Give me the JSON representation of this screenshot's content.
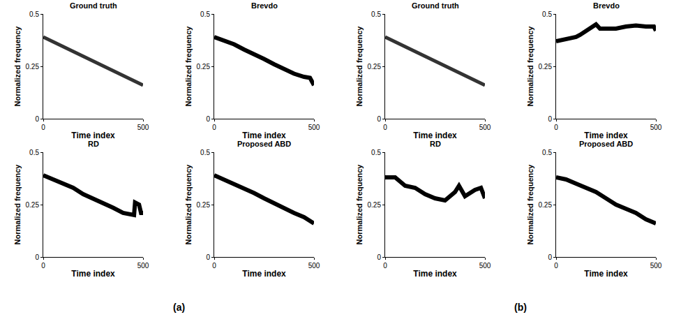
{
  "chart_data": [
    {
      "type": "line",
      "panel": "(a)",
      "title": "Ground truth",
      "x_label": "Time index",
      "y_label": "Normalized frequency",
      "x": [
        0,
        500
      ],
      "values": [
        0.39,
        0.16
      ],
      "color": "#333333",
      "xlim": [
        0,
        500
      ],
      "ylim": [
        0,
        0.5
      ],
      "xticks": [
        0,
        500
      ],
      "yticks": [
        0,
        0.25,
        0.5
      ]
    },
    {
      "type": "line",
      "panel": "(a)",
      "title": "Brevdo",
      "x_label": "Time index",
      "y_label": "Normalized frequency",
      "x": [
        0,
        50,
        100,
        150,
        200,
        250,
        300,
        350,
        400,
        450,
        480,
        500
      ],
      "values": [
        0.39,
        0.375,
        0.355,
        0.33,
        0.31,
        0.285,
        0.26,
        0.235,
        0.215,
        0.2,
        0.195,
        0.16
      ],
      "color": "#000000",
      "xlim": [
        0,
        500
      ],
      "ylim": [
        0,
        0.5
      ],
      "xticks": [
        0,
        500
      ],
      "yticks": [
        0,
        0.25,
        0.5
      ]
    },
    {
      "type": "line",
      "panel": "(a)",
      "title": "RD",
      "x_label": "Time index",
      "y_label": "Normalized frequency",
      "x": [
        0,
        50,
        100,
        150,
        200,
        250,
        300,
        350,
        400,
        440,
        455,
        460,
        480,
        490,
        500
      ],
      "values": [
        0.39,
        0.37,
        0.35,
        0.33,
        0.3,
        0.28,
        0.26,
        0.235,
        0.21,
        0.2,
        0.2,
        0.26,
        0.25,
        0.21,
        0.21
      ],
      "color": "#000000",
      "xlim": [
        0,
        500
      ],
      "ylim": [
        0,
        0.5
      ],
      "xticks": [
        0,
        500
      ],
      "yticks": [
        0,
        0.25,
        0.5
      ]
    },
    {
      "type": "line",
      "panel": "(a)",
      "title": "Proposed ABD",
      "x_label": "Time index",
      "y_label": "Normalized frequency",
      "x": [
        0,
        50,
        100,
        150,
        200,
        250,
        300,
        350,
        400,
        450,
        500
      ],
      "values": [
        0.39,
        0.37,
        0.35,
        0.33,
        0.305,
        0.28,
        0.255,
        0.235,
        0.21,
        0.19,
        0.16
      ],
      "color": "#000000",
      "xlim": [
        0,
        500
      ],
      "ylim": [
        0,
        0.5
      ],
      "xticks": [
        0,
        500
      ],
      "yticks": [
        0,
        0.25,
        0.5
      ]
    },
    {
      "type": "line",
      "panel": "(b)",
      "title": "Ground truth",
      "x_label": "Time index",
      "y_label": "Normalized frequency",
      "x": [
        0,
        500
      ],
      "values": [
        0.39,
        0.16
      ],
      "color": "#333333",
      "xlim": [
        0,
        500
      ],
      "ylim": [
        0,
        0.5
      ],
      "xticks": [
        0,
        500
      ],
      "yticks": [
        0,
        0.25,
        0.5
      ]
    },
    {
      "type": "line",
      "panel": "(b)",
      "title": "Brevdo",
      "x_label": "Time index",
      "y_label": "Normalized frequency",
      "x": [
        0,
        50,
        100,
        120,
        150,
        200,
        220,
        300,
        350,
        400,
        450,
        490,
        500
      ],
      "values": [
        0.37,
        0.38,
        0.39,
        0.4,
        0.42,
        0.45,
        0.43,
        0.43,
        0.44,
        0.445,
        0.44,
        0.44,
        0.42
      ],
      "color": "#000000",
      "xlim": [
        0,
        500
      ],
      "ylim": [
        0,
        0.5
      ],
      "xticks": [
        0,
        500
      ],
      "yticks": [
        0,
        0.25,
        0.5
      ]
    },
    {
      "type": "line",
      "panel": "(b)",
      "title": "RD",
      "x_label": "Time index",
      "y_label": "Normalized frequency",
      "x": [
        0,
        50,
        100,
        150,
        200,
        250,
        300,
        350,
        370,
        400,
        450,
        480,
        500
      ],
      "values": [
        0.38,
        0.38,
        0.34,
        0.33,
        0.3,
        0.28,
        0.27,
        0.31,
        0.34,
        0.29,
        0.32,
        0.33,
        0.28
      ],
      "color": "#000000",
      "xlim": [
        0,
        500
      ],
      "ylim": [
        0,
        0.5
      ],
      "xticks": [
        0,
        500
      ],
      "yticks": [
        0,
        0.25,
        0.5
      ]
    },
    {
      "type": "line",
      "panel": "(b)",
      "title": "Proposed ABD",
      "x_label": "Time index",
      "y_label": "Normalized frequency",
      "x": [
        0,
        50,
        100,
        150,
        200,
        250,
        300,
        350,
        400,
        450,
        500
      ],
      "values": [
        0.38,
        0.37,
        0.35,
        0.33,
        0.31,
        0.28,
        0.25,
        0.23,
        0.21,
        0.18,
        0.16
      ],
      "color": "#000000",
      "xlim": [
        0,
        500
      ],
      "ylim": [
        0,
        0.5
      ],
      "xticks": [
        0,
        500
      ],
      "yticks": [
        0,
        0.25,
        0.5
      ]
    }
  ]
}
